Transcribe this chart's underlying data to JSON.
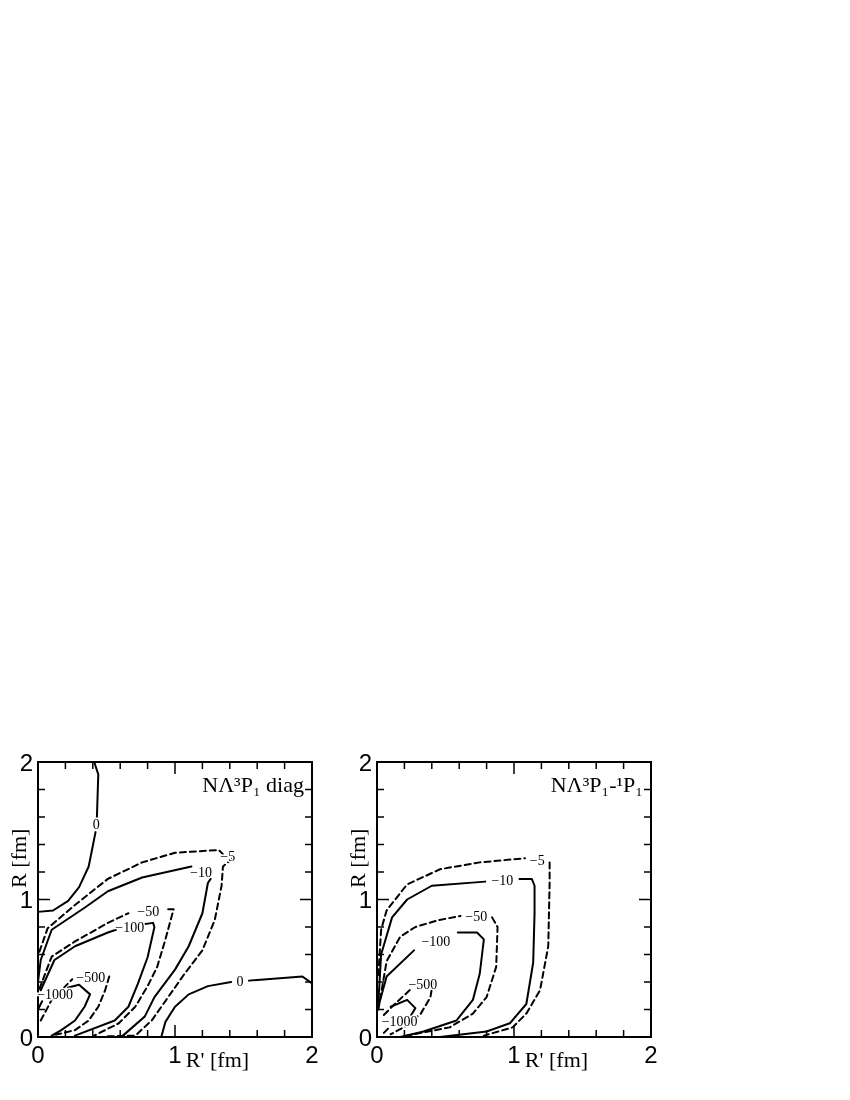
{
  "chart_data": [
    {
      "type": "line",
      "title": "NΛ³P₁ diag",
      "xlabel": "R' [fm]",
      "ylabel": "R [fm]",
      "xlim": [
        0,
        2
      ],
      "ylim": [
        0,
        2
      ],
      "xticks": [
        0,
        {
          "value": 0.2,
          "label": null
        },
        {
          "value": 0.4,
          "label": null
        },
        {
          "value": 0.6,
          "label": null
        },
        {
          "value": 0.8,
          "label": null
        },
        1,
        {
          "value": 1.2,
          "label": null
        },
        {
          "value": 1.4,
          "label": null
        },
        {
          "value": 1.6,
          "label": null
        },
        {
          "value": 1.8,
          "label": null
        },
        2
      ],
      "yticks": [
        0,
        {
          "value": 0.2,
          "label": null
        },
        {
          "value": 0.4,
          "label": null
        },
        {
          "value": 0.6,
          "label": null
        },
        {
          "value": 0.8,
          "label": null
        },
        1,
        {
          "value": 1.2,
          "label": null
        },
        {
          "value": 1.4,
          "label": null
        },
        {
          "value": 1.6,
          "label": null
        },
        {
          "value": 1.8,
          "label": null
        },
        2
      ],
      "marker": "none",
      "grid": false,
      "series": [
        {
          "name": "0",
          "color": "#000000",
          "line_style": "solid",
          "x": [
            0.41,
            0.44,
            0.43,
            null,
            0.42,
            0.37,
            0.3,
            0.22,
            0.11,
            0
          ],
          "values": [
            2,
            1.91,
            1.6,
            null,
            1.49,
            1.24,
            1.09,
            0.99,
            0.92,
            0.91
          ]
        },
        {
          "name": "0",
          "color": "#000000",
          "line_style": "solid",
          "x": [
            2,
            1.93,
            1.54,
            null,
            1.41,
            1.24,
            1.1,
            1.0,
            0.93,
            0.9
          ],
          "values": [
            0.39,
            0.44,
            0.41,
            null,
            0.4,
            0.37,
            0.31,
            0.22,
            0.11,
            0
          ]
        },
        {
          "name": "−5",
          "color": "#000000",
          "line_style": "dashed",
          "x": [
            0.01,
            0.07,
            0.27,
            0.51,
            0.76,
            1.0,
            1.32,
            1.35,
            null,
            1.42,
            1.35,
            1.34,
            1.29,
            1.2,
            1.07,
            0.95,
            0.83,
            0.71,
            0.5
          ],
          "values": [
            0.62,
            0.79,
            0.96,
            1.15,
            1.27,
            1.34,
            1.36,
            1.33,
            null,
            1.3,
            1.24,
            1.1,
            0.85,
            0.63,
            0.46,
            0.29,
            0.12,
            0.01,
            0.005
          ]
        },
        {
          "name": "−10",
          "color": "#000000",
          "line_style": "solid",
          "x": [
            0,
            0.02,
            0.1,
            0.34,
            0.51,
            0.76,
            1.12,
            null,
            1.26,
            1.24,
            1.2,
            1.1,
            1.0,
            0.85,
            0.78,
            0.62
          ],
          "values": [
            0.4,
            0.56,
            0.78,
            0.94,
            1.06,
            1.16,
            1.24,
            null,
            1.15,
            1.12,
            0.9,
            0.66,
            0.49,
            0.29,
            0.15,
            0.01
          ]
        },
        {
          "name": "−50",
          "color": "#000000",
          "line_style": "dashed",
          "x": [
            0.01,
            0.1,
            0.27,
            0.51,
            0.66,
            null,
            0.95,
            0.99,
            0.93,
            0.87,
            0.8,
            0.71,
            0.59,
            0.41
          ],
          "values": [
            0.35,
            0.585,
            0.695,
            0.83,
            0.9,
            null,
            0.93,
            0.93,
            0.71,
            0.51,
            0.37,
            0.22,
            0.1,
            0.01
          ]
        },
        {
          "name": "−100",
          "color": "#000000",
          "line_style": "solid",
          "x": [
            0.02,
            0.12,
            0.27,
            0.51,
            0.57,
            null,
            0.77,
            0.84,
            0.85,
            0.8,
            0.73,
            0.66,
            0.56,
            0.27
          ],
          "values": [
            0.34,
            0.56,
            0.66,
            0.76,
            0.78,
            null,
            0.82,
            0.83,
            0.8,
            0.58,
            0.39,
            0.22,
            0.12,
            0.01
          ]
        },
        {
          "name": "−500",
          "color": "#000000",
          "line_style": "dashed",
          "x": [
            0.02,
            0.1,
            0.25,
            null,
            0.52,
            0.49,
            0.44,
            0.37,
            0.27,
            0.1
          ],
          "values": [
            0.12,
            0.27,
            0.42,
            null,
            0.44,
            0.34,
            0.22,
            0.12,
            0.05,
            0.01
          ]
        },
        {
          "name": "−1000",
          "color": "#000000",
          "line_style": "solid",
          "x": [
            0,
            0.03,
            null,
            0.22,
            0.3,
            0.38,
            0.34,
            0.27,
            0.17,
            0.1
          ],
          "values": [
            0.2,
            0.26,
            null,
            0.36,
            0.38,
            0.31,
            0.22,
            0.12,
            0.05,
            0.01
          ]
        }
      ]
    },
    {
      "type": "line",
      "title": "NΛ³P₁-¹P₁",
      "xlabel": "R' [fm]",
      "ylabel": "R [fm]",
      "xlim": [
        0,
        2
      ],
      "ylim": [
        0,
        2
      ],
      "xticks": [
        0,
        {
          "value": 0.2,
          "label": null
        },
        {
          "value": 0.4,
          "label": null
        },
        {
          "value": 0.6,
          "label": null
        },
        {
          "value": 0.8,
          "label": null
        },
        1,
        {
          "value": 1.2,
          "label": null
        },
        {
          "value": 1.4,
          "label": null
        },
        {
          "value": 1.6,
          "label": null
        },
        {
          "value": 1.8,
          "label": null
        },
        2
      ],
      "yticks": [
        0,
        {
          "value": 0.2,
          "label": null
        },
        {
          "value": 0.4,
          "label": null
        },
        {
          "value": 0.6,
          "label": null
        },
        {
          "value": 0.8,
          "label": null
        },
        1,
        {
          "value": 1.2,
          "label": null
        },
        {
          "value": 1.4,
          "label": null
        },
        {
          "value": 1.6,
          "label": null
        },
        {
          "value": 1.8,
          "label": null
        },
        2
      ],
      "marker": "none",
      "grid": false,
      "series": [
        {
          "name": "−5",
          "color": "#000000",
          "line_style": "dashed",
          "x": [
            0.01,
            0.03,
            0.07,
            0.22,
            0.46,
            0.75,
            1.08,
            null,
            1.26,
            1.26,
            1.25,
            1.19,
            1.09,
            0.99,
            0.78
          ],
          "values": [
            0.45,
            0.78,
            0.92,
            1.11,
            1.22,
            1.27,
            1.3,
            null,
            1.27,
            1.12,
            0.66,
            0.34,
            0.17,
            0.07,
            0.01
          ]
        },
        {
          "name": "−10",
          "color": "#000000",
          "line_style": "solid",
          "x": [
            0.01,
            0.03,
            0.11,
            0.22,
            0.4,
            0.79,
            null,
            1.04,
            1.13,
            1.15,
            1.15,
            1.14,
            1.09,
            0.97,
            0.8,
            0.46
          ],
          "values": [
            0.25,
            0.6,
            0.87,
            1.0,
            1.1,
            1.13,
            null,
            1.15,
            1.15,
            1.1,
            0.9,
            0.54,
            0.24,
            0.1,
            0.04,
            0
          ]
        },
        {
          "name": "−50",
          "color": "#000000",
          "line_style": "dashed",
          "x": [
            0.01,
            0.07,
            0.17,
            0.28,
            0.45,
            0.61,
            null,
            0.84,
            0.88,
            0.87,
            0.8,
            0.7,
            0.53,
            0.22
          ],
          "values": [
            0.2,
            0.55,
            0.73,
            0.8,
            0.85,
            0.88,
            null,
            0.87,
            0.8,
            0.51,
            0.29,
            0.17,
            0.07,
            0.01
          ]
        },
        {
          "name": "−100",
          "color": "#000000",
          "line_style": "solid",
          "x": [
            0.01,
            0.07,
            0.27,
            null,
            0.59,
            0.73,
            0.78,
            0.75,
            0.7,
            0.58,
            0.34,
            0.17
          ],
          "values": [
            0.22,
            0.44,
            0.63,
            null,
            0.76,
            0.76,
            0.71,
            0.46,
            0.27,
            0.12,
            0.04,
            0
          ]
        },
        {
          "name": "−500",
          "color": "#000000",
          "line_style": "dashed",
          "x": [
            0.05,
            0.13,
            0.26,
            null,
            0.41,
            0.39,
            0.32,
            0.22,
            0.1
          ],
          "values": [
            0.16,
            0.24,
            0.36,
            null,
            0.41,
            0.29,
            0.17,
            0.085,
            0.02
          ]
        },
        {
          "name": "−1000",
          "color": "#000000",
          "line_style": "solid",
          "x": [
            0.1,
            0.22,
            0.28,
            0.25,
            null,
            0.08,
            0.05
          ],
          "values": [
            0.22,
            0.27,
            0.21,
            0.16,
            null,
            0.06,
            0.03
          ]
        }
      ]
    }
  ]
}
